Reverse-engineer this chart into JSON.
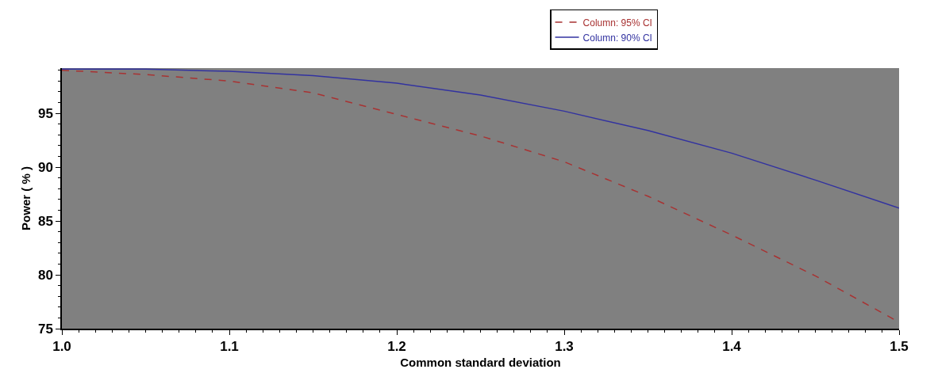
{
  "chart_data": {
    "type": "line",
    "xlabel": "Common standard deviation",
    "ylabel": "Power ( % )",
    "x": [
      1.0,
      1.05,
      1.1,
      1.15,
      1.2,
      1.25,
      1.3,
      1.35,
      1.4,
      1.45,
      1.5
    ],
    "series": [
      {
        "name": "Column: 95% CI",
        "color": "#a83232",
        "line_style": "dashed",
        "values": [
          99.0,
          98.6,
          98.0,
          96.9,
          94.9,
          92.9,
          90.5,
          87.3,
          83.7,
          79.9,
          75.6
        ]
      },
      {
        "name": "Column: 90% CI",
        "color": "#3232a0",
        "line_style": "solid",
        "values": [
          99.1,
          99.1,
          98.9,
          98.5,
          97.8,
          96.7,
          95.2,
          93.4,
          91.3,
          88.8,
          86.2
        ]
      }
    ],
    "xlim": [
      1.0,
      1.5
    ],
    "xticks": [
      {
        "value": 1.0,
        "label": "1.0"
      },
      1.1,
      1.2,
      1.3,
      1.4,
      1.5
    ],
    "ylim": [
      75,
      99.2
    ],
    "yticks": [
      75,
      80,
      85,
      90,
      95
    ],
    "legend": "top right",
    "marker": "none"
  }
}
